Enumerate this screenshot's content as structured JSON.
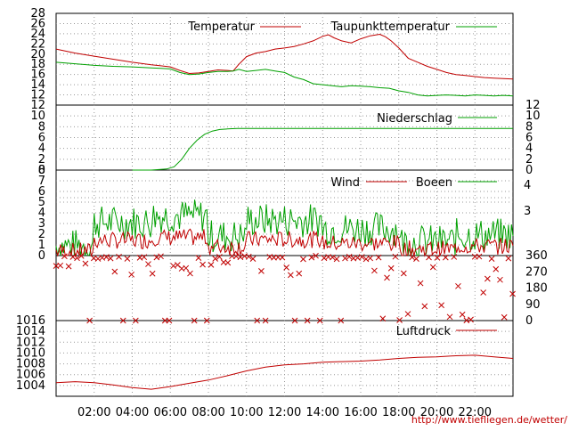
{
  "chart_data": [
    {
      "type": "line",
      "panel": "temperature",
      "ylim": [
        10,
        28
      ],
      "y_ticks": [
        "28",
        "26",
        "24",
        "22",
        "20",
        "18",
        "16",
        "14",
        "12"
      ],
      "y_tick_values": [
        28,
        26,
        24,
        22,
        20,
        18,
        16,
        14,
        12
      ],
      "series": [
        {
          "name": "Temperatur",
          "color": "#c00000",
          "x": [
            0,
            1,
            2,
            3,
            4,
            5,
            5.5,
            6,
            6.5,
            7,
            7.5,
            8,
            8.5,
            9,
            9.3,
            9.6,
            10,
            10.5,
            11,
            11.5,
            12,
            12.5,
            13,
            13.5,
            14,
            14.3,
            14.6,
            15,
            15.5,
            16,
            16.5,
            17,
            17.3,
            17.6,
            18,
            18.5,
            19,
            19.5,
            20,
            20.5,
            21,
            21.5,
            22,
            22.5,
            23,
            23.5,
            24
          ],
          "y": [
            21,
            20.2,
            19.6,
            19.0,
            18.4,
            17.9,
            17.7,
            17.5,
            16.8,
            16.2,
            16.3,
            16.6,
            16.9,
            16.8,
            16.7,
            18.0,
            19.5,
            20.2,
            20.5,
            21.0,
            21.2,
            21.5,
            22.0,
            22.6,
            23.5,
            23.8,
            23.2,
            22.6,
            22.2,
            23.0,
            23.6,
            23.9,
            23.4,
            22.6,
            21.2,
            19.2,
            18.4,
            17.6,
            17.0,
            16.4,
            16.0,
            15.8,
            15.6,
            15.4,
            15.3,
            15.2,
            15.1
          ]
        },
        {
          "name": "Taupunkttemperatur",
          "color": "#00a000",
          "x": [
            0,
            1,
            2,
            3,
            4,
            5,
            5.5,
            6,
            6.5,
            7,
            7.5,
            8,
            8.5,
            9,
            9.3,
            9.6,
            10,
            10.5,
            11,
            11.5,
            12,
            12.5,
            13,
            13.5,
            14,
            14.5,
            15,
            15.5,
            16,
            16.5,
            17,
            17.5,
            18,
            18.5,
            19,
            19.5,
            20,
            20.5,
            21,
            21.5,
            22,
            22.5,
            23,
            23.5,
            24
          ],
          "y": [
            18.4,
            18.1,
            17.8,
            17.6,
            17.5,
            17.3,
            17.2,
            17.1,
            16.4,
            16.0,
            16.1,
            16.4,
            16.6,
            16.6,
            16.7,
            17.0,
            16.6,
            16.8,
            17.0,
            16.7,
            16.4,
            15.5,
            15.0,
            14.2,
            14.0,
            13.8,
            13.6,
            13.8,
            13.7,
            13.6,
            13.4,
            13.3,
            12.8,
            12.5,
            12.0,
            11.8,
            11.9,
            12.0,
            11.9,
            11.8,
            12.0,
            11.9,
            11.8,
            11.9,
            11.8
          ]
        }
      ]
    },
    {
      "type": "line",
      "panel": "precipitation",
      "ylim": [
        0,
        12
      ],
      "y_ticks": [
        "12",
        "10",
        "8",
        "6",
        "4",
        "2",
        "0"
      ],
      "y_tick_values": [
        12,
        10,
        8,
        6,
        4,
        2,
        0
      ],
      "series": [
        {
          "name": "Niederschlag",
          "color": "#00a000",
          "x": [
            4,
            5,
            5.8,
            6.2,
            6.6,
            7.0,
            7.4,
            7.8,
            8.2,
            8.6,
            9.0,
            9.5,
            10,
            12,
            16,
            20,
            24
          ],
          "y": [
            0,
            0,
            0.2,
            0.6,
            2.0,
            4.0,
            5.5,
            6.6,
            7.2,
            7.5,
            7.6,
            7.7,
            7.7,
            7.7,
            7.7,
            7.7,
            7.7
          ]
        }
      ]
    },
    {
      "type": "line",
      "panel": "wind",
      "ylim": [
        0,
        8
      ],
      "y_ticks": [
        "8",
        "7",
        "6",
        "5",
        "4",
        "3",
        "2",
        "1",
        "0"
      ],
      "y_tick_values": [
        8,
        7,
        6,
        5,
        4,
        3,
        2,
        1,
        0
      ],
      "y2_ticks": [
        "4",
        "3"
      ],
      "series": [
        {
          "name": "Wind",
          "color": "#c00000"
        },
        {
          "name": "Boeen",
          "color": "#00a000"
        }
      ]
    },
    {
      "type": "scatter",
      "panel": "wind-direction",
      "ylim": [
        0,
        360
      ],
      "y2_ticks": [
        "360",
        "270",
        "180",
        "90",
        "0"
      ],
      "y2_tick_values": [
        360,
        270,
        180,
        90,
        0
      ],
      "series": [
        {
          "color": "#c00000"
        }
      ]
    },
    {
      "type": "line",
      "panel": "pressure",
      "ylim": [
        1002,
        1016
      ],
      "y_ticks": [
        "1016",
        "1014",
        "1012",
        "1010",
        "1008",
        "1006",
        "1004"
      ],
      "y_tick_values": [
        1016,
        1014,
        1012,
        1010,
        1008,
        1006,
        1004
      ],
      "series": [
        {
          "name": "Luftdruck",
          "color": "#c00000",
          "x": [
            0,
            1,
            2,
            3,
            4,
            5,
            6,
            7,
            8,
            9,
            10,
            11,
            12,
            13,
            14,
            15,
            16,
            17,
            18,
            19,
            20,
            21,
            22,
            23,
            24
          ],
          "y": [
            1004.5,
            1004.7,
            1004.5,
            1004.1,
            1003.6,
            1003.3,
            1003.8,
            1004.4,
            1005.0,
            1005.8,
            1006.7,
            1007.4,
            1007.8,
            1008.0,
            1008.3,
            1008.4,
            1008.5,
            1008.7,
            1009.0,
            1009.2,
            1009.3,
            1009.5,
            1009.6,
            1009.3,
            1009.0
          ]
        }
      ]
    }
  ],
  "x_axis": {
    "ticks": [
      "02:00",
      "04:00",
      "06:00",
      "08:00",
      "10:00",
      "12:00",
      "14:00",
      "16:00",
      "18:00",
      "20:00",
      "22:00"
    ],
    "tick_values": [
      2,
      4,
      6,
      8,
      10,
      12,
      14,
      16,
      18,
      20,
      22
    ],
    "xlim": [
      0,
      24
    ]
  },
  "footer_url": "http://www.tiefliegen.de/wetter/"
}
